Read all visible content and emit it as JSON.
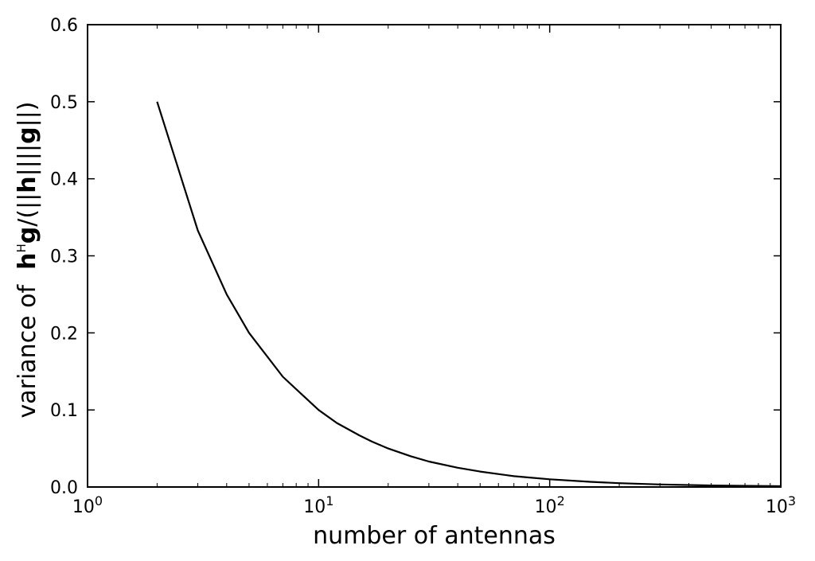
{
  "chart_data": {
    "type": "line",
    "x_scale": "log",
    "xlim": [
      1,
      1000
    ],
    "ylim": [
      0.0,
      0.6
    ],
    "xlabel": "number of antennas",
    "ylabel": {
      "prefix": "variance of",
      "expression": [
        {
          "text": "h",
          "bold": true
        },
        {
          "text": "H",
          "sup": true
        },
        {
          "text": "g",
          "bold": true
        },
        {
          "text": "/(||"
        },
        {
          "text": "h",
          "bold": true
        },
        {
          "text": "||||"
        },
        {
          "text": "g",
          "bold": true
        },
        {
          "text": "||)"
        }
      ]
    },
    "x_ticks": [
      {
        "base": "10",
        "exp": "0",
        "value": 1
      },
      {
        "base": "10",
        "exp": "1",
        "value": 10
      },
      {
        "base": "10",
        "exp": "2",
        "value": 100
      },
      {
        "base": "10",
        "exp": "3",
        "value": 1000
      }
    ],
    "y_ticks": [
      "0.0",
      "0.1",
      "0.2",
      "0.3",
      "0.4",
      "0.5",
      "0.6"
    ],
    "grid": false,
    "series": [
      {
        "color": "#000000",
        "x": [
          2,
          3,
          4,
          5,
          7,
          10,
          12,
          15,
          17,
          20,
          25,
          30,
          40,
          50,
          70,
          80,
          100,
          150,
          200,
          300,
          500,
          1000
        ],
        "y": [
          0.5,
          0.333,
          0.25,
          0.2,
          0.143,
          0.1,
          0.083,
          0.067,
          0.059,
          0.05,
          0.04,
          0.033,
          0.025,
          0.02,
          0.014,
          0.0125,
          0.01,
          0.0067,
          0.005,
          0.0033,
          0.002,
          0.001
        ]
      }
    ]
  }
}
